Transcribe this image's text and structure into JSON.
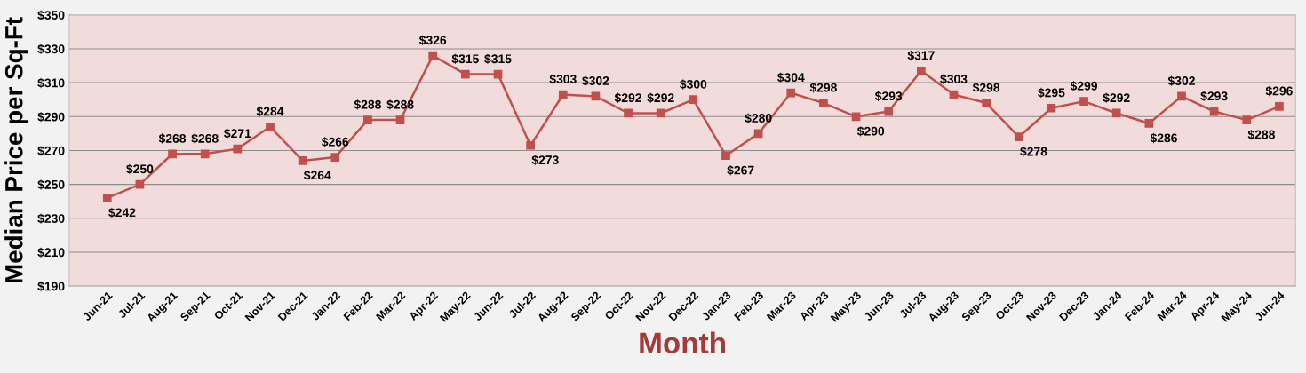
{
  "chart_data": {
    "type": "line",
    "xlabel": "Month",
    "ylabel": "Median Price per Sq-Ft",
    "categories": [
      "Jun-21",
      "Jul-21",
      "Aug-21",
      "Sep-21",
      "Oct-21",
      "Nov-21",
      "Dec-21",
      "Jan-22",
      "Feb-22",
      "Mar-22",
      "Apr-22",
      "May-22",
      "Jun-22",
      "Jul-22",
      "Aug-22",
      "Sep-22",
      "Oct-22",
      "Nov-22",
      "Dec-22",
      "Jan-23",
      "Feb-23",
      "Mar-23",
      "Apr-23",
      "May-23",
      "Jun-23",
      "Jul-23",
      "Aug-23",
      "Sep-23",
      "Oct-23",
      "Nov-23",
      "Dec-23",
      "Jan-24",
      "Feb-24",
      "Mar-24",
      "Apr-24",
      "May-24",
      "Jun-24"
    ],
    "series": [
      {
        "color": "#c0504d",
        "values": [
          242,
          250,
          268,
          268,
          271,
          284,
          264,
          266,
          288,
          288,
          326,
          315,
          315,
          273,
          303,
          302,
          292,
          292,
          300,
          267,
          280,
          304,
          298,
          290,
          293,
          317,
          303,
          298,
          278,
          295,
          299,
          292,
          286,
          302,
          293,
          288,
          296
        ],
        "value_labels": [
          "$242",
          "$250",
          "$268",
          "$268",
          "$271",
          "$284",
          "$264",
          "$266",
          "$288",
          "$288",
          "$326",
          "$315",
          "$315",
          "$273",
          "$303",
          "$302",
          "$292",
          "$292",
          "$300",
          "$267",
          "$280",
          "$304",
          "$298",
          "$290",
          "$293",
          "$317",
          "$303",
          "$298",
          "$278",
          "$295",
          "$299",
          "$292",
          "$286",
          "$302",
          "$293",
          "$288",
          "$296"
        ]
      }
    ],
    "ylim": [
      190,
      350
    ],
    "yticks": [
      {
        "value": 190,
        "label": "$190"
      },
      {
        "value": 210,
        "label": "$210"
      },
      {
        "value": 230,
        "label": "$230"
      },
      {
        "value": 250,
        "label": "$250"
      },
      {
        "value": 270,
        "label": "$270"
      },
      {
        "value": 290,
        "label": "$290"
      },
      {
        "value": 310,
        "label": "$310"
      },
      {
        "value": 330,
        "label": "$330"
      },
      {
        "value": 350,
        "label": "$350"
      }
    ],
    "grid": "y",
    "marker": "square",
    "line_style": "solid"
  }
}
